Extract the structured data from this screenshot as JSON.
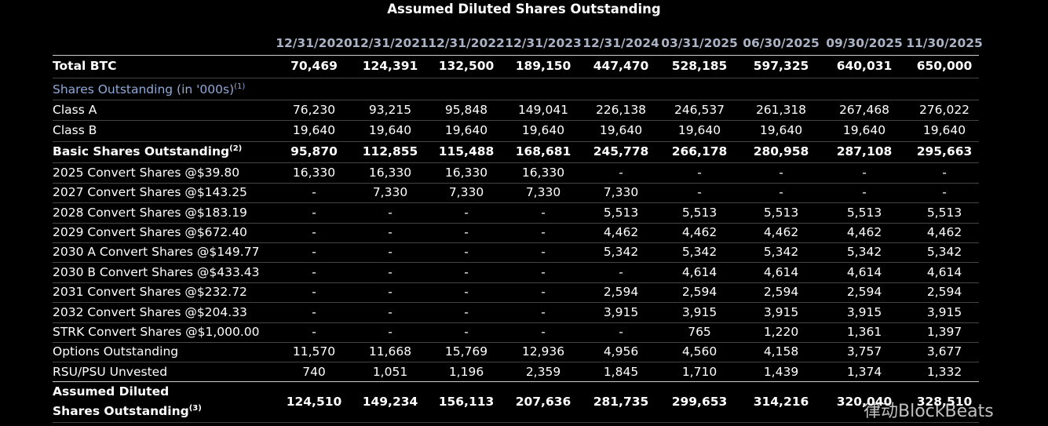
{
  "header": {
    "title": "Assumed Diluted Shares Outstanding"
  },
  "table": {
    "columns": [
      "12/31/2020",
      "12/31/2021",
      "12/31/2022",
      "12/31/2023",
      "12/31/2024",
      "03/31/2025",
      "06/30/2025",
      "09/30/2025",
      "11/30/2025"
    ],
    "rows": [
      {
        "label": "Total BTC",
        "values": [
          "70,469",
          "124,391",
          "132,500",
          "189,150",
          "447,470",
          "528,185",
          "597,325",
          "640,031",
          "650,000"
        ]
      },
      {
        "label": "Shares Outstanding (in '000s)",
        "note": "(1)"
      },
      {
        "label": "Class A",
        "values": [
          "76,230",
          "93,215",
          "95,848",
          "149,041",
          "226,138",
          "246,537",
          "261,318",
          "267,468",
          "276,022"
        ]
      },
      {
        "label": "Class B",
        "values": [
          "19,640",
          "19,640",
          "19,640",
          "19,640",
          "19,640",
          "19,640",
          "19,640",
          "19,640",
          "19,640"
        ]
      },
      {
        "label": "Basic Shares Outstanding",
        "note": "(2)",
        "values": [
          "95,870",
          "112,855",
          "115,488",
          "168,681",
          "245,778",
          "266,178",
          "280,958",
          "287,108",
          "295,663"
        ]
      },
      {
        "label": "2025 Convert Shares @$39.80",
        "values": [
          "16,330",
          "16,330",
          "16,330",
          "16,330",
          "-",
          "-",
          "-",
          "-",
          "-"
        ]
      },
      {
        "label": "2027 Convert Shares @$143.25",
        "values": [
          "-",
          "7,330",
          "7,330",
          "7,330",
          "7,330",
          "-",
          "-",
          "-",
          "-"
        ]
      },
      {
        "label": "2028 Convert Shares @$183.19",
        "values": [
          "-",
          "-",
          "-",
          "-",
          "5,513",
          "5,513",
          "5,513",
          "5,513",
          "5,513"
        ]
      },
      {
        "label": "2029 Convert Shares @$672.40",
        "values": [
          "-",
          "-",
          "-",
          "-",
          "4,462",
          "4,462",
          "4,462",
          "4,462",
          "4,462"
        ]
      },
      {
        "label": "2030 A Convert Shares @$149.77",
        "values": [
          "-",
          "-",
          "-",
          "-",
          "5,342",
          "5,342",
          "5,342",
          "5,342",
          "5,342"
        ]
      },
      {
        "label": "2030 B Convert Shares @$433.43",
        "values": [
          "-",
          "-",
          "-",
          "-",
          "-",
          "4,614",
          "4,614",
          "4,614",
          "4,614"
        ]
      },
      {
        "label": "2031 Convert Shares @$232.72",
        "values": [
          "-",
          "-",
          "-",
          "-",
          "2,594",
          "2,594",
          "2,594",
          "2,594",
          "2,594"
        ]
      },
      {
        "label": "2032 Convert Shares @$204.33",
        "values": [
          "-",
          "-",
          "-",
          "-",
          "3,915",
          "3,915",
          "3,915",
          "3,915",
          "3,915"
        ]
      },
      {
        "label": "STRK Convert Shares @$1,000.00",
        "values": [
          "-",
          "-",
          "-",
          "-",
          "-",
          "765",
          "1,220",
          "1,361",
          "1,397"
        ]
      },
      {
        "label": "Options Outstanding",
        "values": [
          "11,570",
          "11,668",
          "15,769",
          "12,936",
          "4,956",
          "4,560",
          "4,158",
          "3,757",
          "3,677"
        ]
      },
      {
        "label": "RSU/PSU Unvested",
        "values": [
          "740",
          "1,051",
          "1,196",
          "2,359",
          "1,845",
          "1,710",
          "1,439",
          "1,374",
          "1,332"
        ]
      },
      {
        "label": [
          "Assumed Diluted",
          "Shares Outstanding"
        ],
        "note": "(3)",
        "values": [
          "124,510",
          "149,234",
          "156,113",
          "207,636",
          "281,735",
          "299,653",
          "314,216",
          "320,040",
          "328,510"
        ]
      }
    ]
  },
  "watermark": "律动BlockBeats"
}
